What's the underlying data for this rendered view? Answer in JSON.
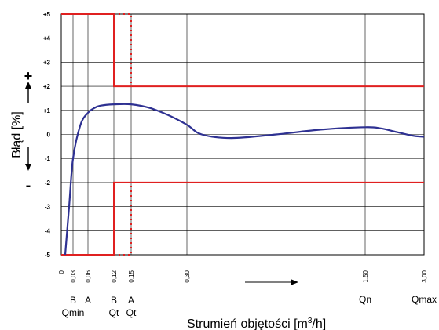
{
  "chart_data": {
    "type": "line",
    "title": "",
    "xlabel": "Strumień objętości [m3/h]",
    "xlabel_main": "Strumień objętości [m",
    "xlabel_sup": "3",
    "xlabel_end": "/h]",
    "ylabel": "Błąd [%]",
    "ylim": [
      -5,
      5
    ],
    "y_ticks": [
      {
        "value": 5,
        "label": "+5"
      },
      {
        "value": 4,
        "label": "+4"
      },
      {
        "value": 3,
        "label": "+3"
      },
      {
        "value": 2,
        "label": "+2"
      },
      {
        "value": 1,
        "label": "+1"
      },
      {
        "value": 0,
        "label": "0"
      },
      {
        "value": -1,
        "label": "-1"
      },
      {
        "value": -2,
        "label": "-2"
      },
      {
        "value": -3,
        "label": "-3"
      },
      {
        "value": -4,
        "label": "-4"
      },
      {
        "value": -5,
        "label": "-5"
      }
    ],
    "x_ticks": [
      "0",
      "0,03",
      "0,06",
      "0,12",
      "0,15",
      "0,30",
      "1,50",
      "3,00"
    ],
    "x_tick_positions": [
      0,
      0.03,
      0.06,
      0.12,
      0.15,
      0.3,
      1.5,
      3.0
    ],
    "sign_plus": "+",
    "sign_minus": "-",
    "markers": [
      {
        "x": 0.03,
        "letter": "B",
        "name": "Qmin"
      },
      {
        "x": 0.06,
        "letter": "A",
        "name": ""
      },
      {
        "x": 0.12,
        "letter": "B",
        "name": "Qt"
      },
      {
        "x": 0.15,
        "letter": "A",
        "name": "Qt"
      },
      {
        "x": 1.5,
        "letter": "",
        "name": "Qn"
      },
      {
        "x": 3.0,
        "letter": "",
        "name": "Qmax"
      }
    ],
    "series": [
      {
        "color": "#2e3192",
        "points": [
          [
            0.01,
            -5.0
          ],
          [
            0.02,
            -3.0
          ],
          [
            0.03,
            -1.0
          ],
          [
            0.045,
            0.4
          ],
          [
            0.06,
            0.9
          ],
          [
            0.075,
            1.1
          ],
          [
            0.09,
            1.2
          ],
          [
            0.12,
            1.25
          ],
          [
            0.15,
            1.25
          ],
          [
            0.2,
            1.1
          ],
          [
            0.25,
            0.8
          ],
          [
            0.3,
            0.4
          ],
          [
            0.4,
            0.0
          ],
          [
            0.6,
            -0.15
          ],
          [
            0.9,
            0.0
          ],
          [
            1.2,
            0.2
          ],
          [
            1.5,
            0.3
          ],
          [
            1.9,
            0.25
          ],
          [
            2.3,
            0.1
          ],
          [
            2.7,
            -0.05
          ],
          [
            3.0,
            -0.1
          ]
        ]
      }
    ],
    "limit_lines": {
      "color": "#e02020",
      "solid_upper": [
        [
          0.0,
          5
        ],
        [
          0.12,
          5
        ],
        [
          0.12,
          2
        ],
        [
          3.0,
          2
        ]
      ],
      "solid_lower": [
        [
          0.0,
          -5
        ],
        [
          0.12,
          -5
        ],
        [
          0.12,
          -2
        ],
        [
          3.0,
          -2
        ]
      ],
      "dotted_upper": [
        [
          0.12,
          5
        ],
        [
          0.15,
          5
        ],
        [
          0.15,
          2
        ]
      ],
      "dotted_lower": [
        [
          0.12,
          -5
        ],
        [
          0.15,
          -5
        ],
        [
          0.15,
          -2
        ]
      ]
    },
    "grid": true
  }
}
